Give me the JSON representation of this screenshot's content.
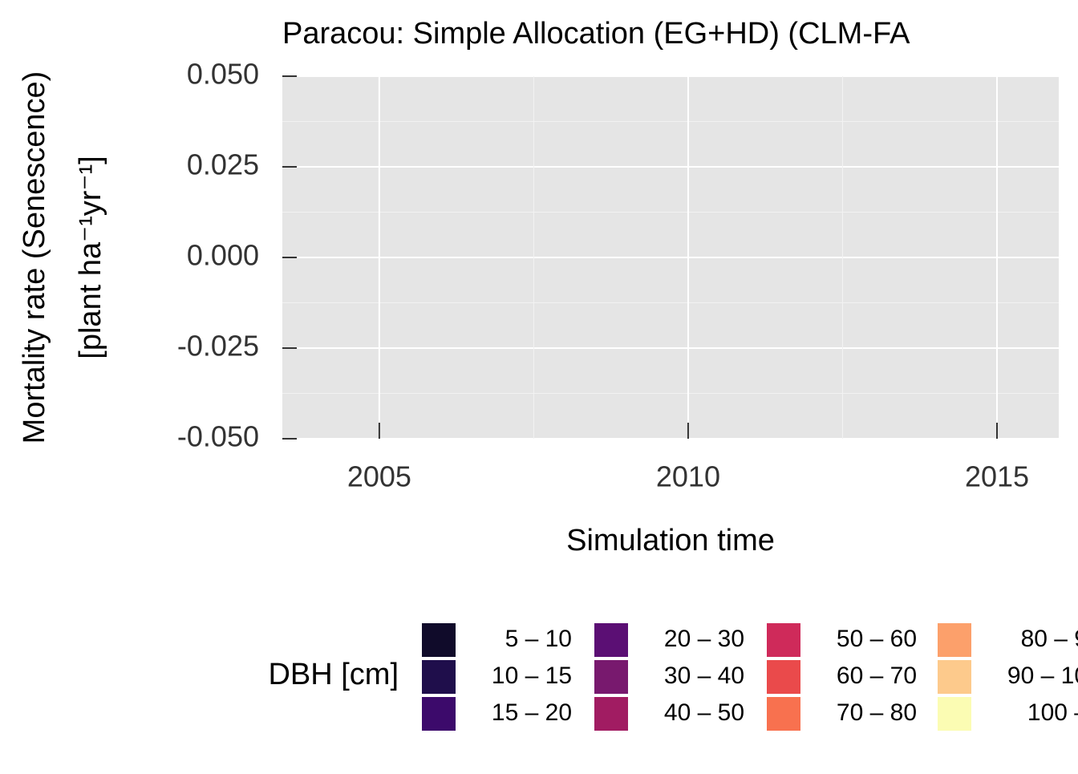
{
  "chart_data": {
    "type": "area",
    "title": "Paracou: Simple Allocation (EG+HD) (CLM-FA",
    "x_label": "Simulation time",
    "y_label": [
      "Mortality rate (Senescence)",
      "[plant ha⁻¹yr⁻¹]"
    ],
    "x": [],
    "xlim": [
      2003.43,
      2016
    ],
    "xticks": [
      2005,
      2010,
      2015
    ],
    "ylim": [
      -0.05,
      0.05
    ],
    "yticks": [
      {
        "value": 0.05,
        "label": "0.050"
      },
      {
        "value": 0.025,
        "label": "0.025"
      },
      {
        "value": 0,
        "label": "0.000"
      },
      {
        "value": -0.025,
        "label": "-0.025"
      },
      {
        "value": -0.05,
        "label": "-0.050"
      }
    ],
    "grid": true,
    "legend_title": "DBH [cm]",
    "legend_position": "bottom",
    "series": [
      {
        "name": "5 – 10",
        "color": "#100b2a",
        "values": []
      },
      {
        "name": "10 – 15",
        "color": "#1f0e4b",
        "values": []
      },
      {
        "name": "15 – 20",
        "color": "#3c0a6b",
        "values": []
      },
      {
        "name": "20 – 30",
        "color": "#5b0f74",
        "values": []
      },
      {
        "name": "30 – 40",
        "color": "#78196e",
        "values": []
      },
      {
        "name": "40 – 50",
        "color": "#a11c62",
        "values": []
      },
      {
        "name": "50 – 60",
        "color": "#cf2a5a",
        "values": []
      },
      {
        "name": "60 – 70",
        "color": "#ea4a4b",
        "values": []
      },
      {
        "name": "70 – 80",
        "color": "#f8714f",
        "values": []
      },
      {
        "name": "80 – 9",
        "color": "#fca06b",
        "values": []
      },
      {
        "name": "90 – 10",
        "color": "#fdca8c",
        "values": []
      },
      {
        "name": "100 –",
        "color": "#fbfcb3",
        "values": []
      }
    ]
  }
}
